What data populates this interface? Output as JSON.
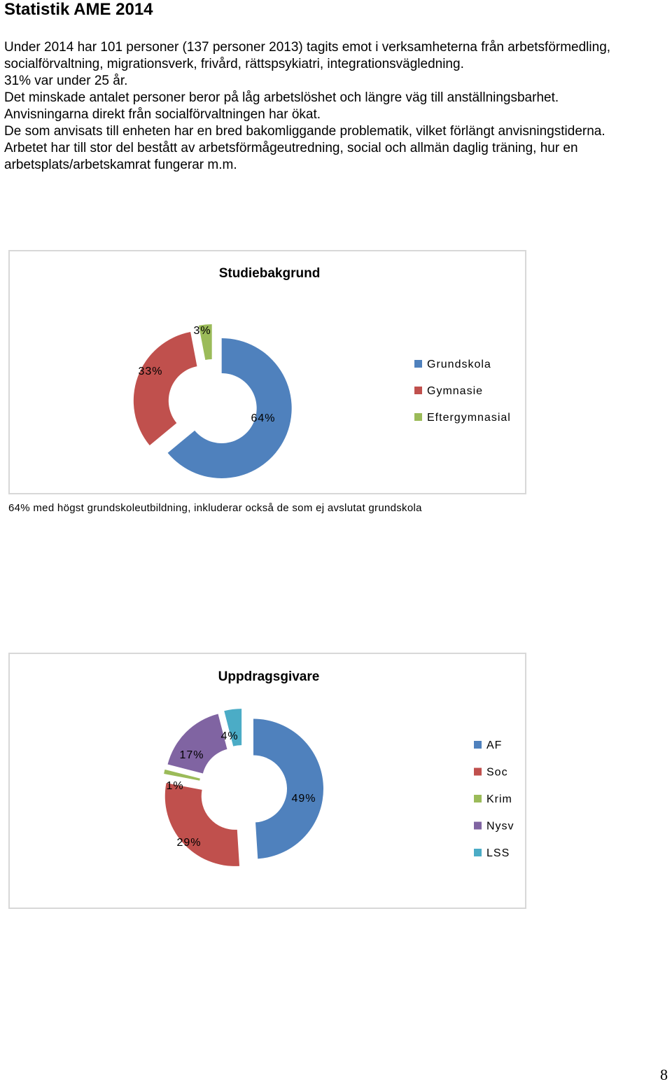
{
  "page": {
    "title": "Statistik AME 2014",
    "paragraphs": [
      "Under 2014 har 101 personer (137 personer 2013) tagits emot i verksamheterna från arbetsförmedling, socialförvaltning, migrationsverk, frivård, rättspsykiatri, integrationsvägledning.",
      "31% var under 25 år.",
      "Det minskade antalet personer beror på låg arbetslöshet och längre väg till anställningsbarhet.",
      "Anvisningarna direkt från socialförvaltningen har ökat.",
      "De som anvisats till enheten har en bred bakomliggande problematik, vilket förlängt anvisningstiderna.",
      "Arbetet har till stor del bestått av arbetsförmågeutredning, social och allmän daglig träning, hur en arbetsplats/arbetskamrat fungerar m.m."
    ],
    "caption": "64% med högst grundskoleutbildning, inkluderar också de som ej avslutat grundskola",
    "page_number": "8"
  },
  "chart_data": [
    {
      "type": "pie",
      "style": "exploded doughnut",
      "title": "Studiebakgrund",
      "legend_position": "right",
      "categories": [
        "Grundskola",
        "Gymnasie",
        "Eftergymnasial"
      ],
      "values": [
        64,
        33,
        3
      ],
      "labels": [
        "64%",
        "33%",
        "3%"
      ],
      "colors": [
        "#4f81bd",
        "#c0504d",
        "#9bbb59"
      ]
    },
    {
      "type": "pie",
      "style": "exploded doughnut",
      "title": "Uppdragsgivare",
      "legend_position": "right",
      "categories": [
        "AF",
        "Soc",
        "Krim",
        "Nysv",
        "LSS"
      ],
      "values": [
        49,
        29,
        1,
        17,
        4
      ],
      "labels": [
        "49%",
        "29%",
        "1%",
        "17%",
        "4%"
      ],
      "colors": [
        "#4f81bd",
        "#c0504d",
        "#9bbb59",
        "#8064a2",
        "#4bacc6"
      ]
    }
  ]
}
